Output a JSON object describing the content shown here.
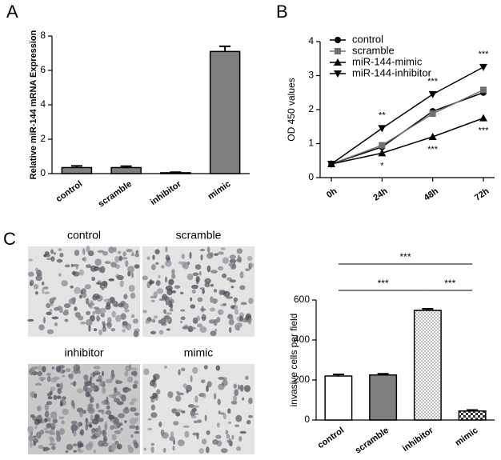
{
  "chart_data": [
    {
      "type": "bar",
      "panel_label": "A",
      "y_label": "Relative miR-144 mRNA Expression",
      "categories": [
        "control",
        "scramble",
        "inhibitor",
        "mimic"
      ],
      "values": [
        0.35,
        0.35,
        0.05,
        7.1
      ],
      "errors": [
        0.1,
        0.08,
        0.03,
        0.3
      ],
      "colors": [
        "#7f7f7f",
        "#7f7f7f",
        "#7f7f7f",
        "#7f7f7f"
      ],
      "ylim": [
        0,
        8
      ],
      "yticks": [
        0,
        2,
        4,
        6,
        8
      ]
    },
    {
      "type": "line",
      "panel_label": "B",
      "y_label": "OD 450 values",
      "categories": [
        "0h",
        "24h",
        "48h",
        "72h"
      ],
      "series": [
        {
          "name": "control",
          "color": "#000000",
          "marker": "circle",
          "values": [
            0.4,
            0.9,
            1.95,
            2.5
          ]
        },
        {
          "name": "scramble",
          "color": "#707070",
          "marker": "square",
          "values": [
            0.4,
            0.95,
            1.88,
            2.58
          ]
        },
        {
          "name": "miR-144-mimic",
          "color": "#000000",
          "marker": "triangle",
          "values": [
            0.4,
            0.72,
            1.2,
            1.75
          ]
        },
        {
          "name": "miR-144-inhibitor",
          "color": "#000000",
          "marker": "triangle-down",
          "values": [
            0.4,
            1.45,
            2.45,
            3.25
          ]
        }
      ],
      "annotations": [
        {
          "text": "**",
          "x": "24h"
        },
        {
          "text": "*",
          "x": "24h"
        },
        {
          "text": "***",
          "x": "48h"
        },
        {
          "text": "***",
          "x": "48h"
        },
        {
          "text": "***",
          "x": "72h"
        },
        {
          "text": "***",
          "x": "72h"
        }
      ],
      "ylim": [
        0,
        4
      ],
      "yticks": [
        0,
        1,
        2,
        3,
        4
      ]
    },
    {
      "type": "bar",
      "panel_label": "C",
      "y_label": "invasive cells per field",
      "categories": [
        "control",
        "scramble",
        "inhibitor",
        "mimic"
      ],
      "values": [
        220,
        225,
        548,
        45
      ],
      "errors": [
        8,
        6,
        8,
        5
      ],
      "colors": [
        "#ffffff",
        "#7f7f7f",
        "dots",
        "checker"
      ],
      "annotations": [
        {
          "text": "***",
          "from": "control",
          "to": "inhibitor"
        },
        {
          "text": "***",
          "from": "inhibitor",
          "to": "mimic"
        },
        {
          "text": "***",
          "from": "control",
          "to": "mimic"
        }
      ],
      "ylim": [
        0,
        600
      ],
      "yticks": [
        0,
        200,
        400,
        600
      ]
    }
  ],
  "micrographs": {
    "labels": [
      "control",
      "scramble",
      "inhibitor",
      "mimic"
    ]
  }
}
